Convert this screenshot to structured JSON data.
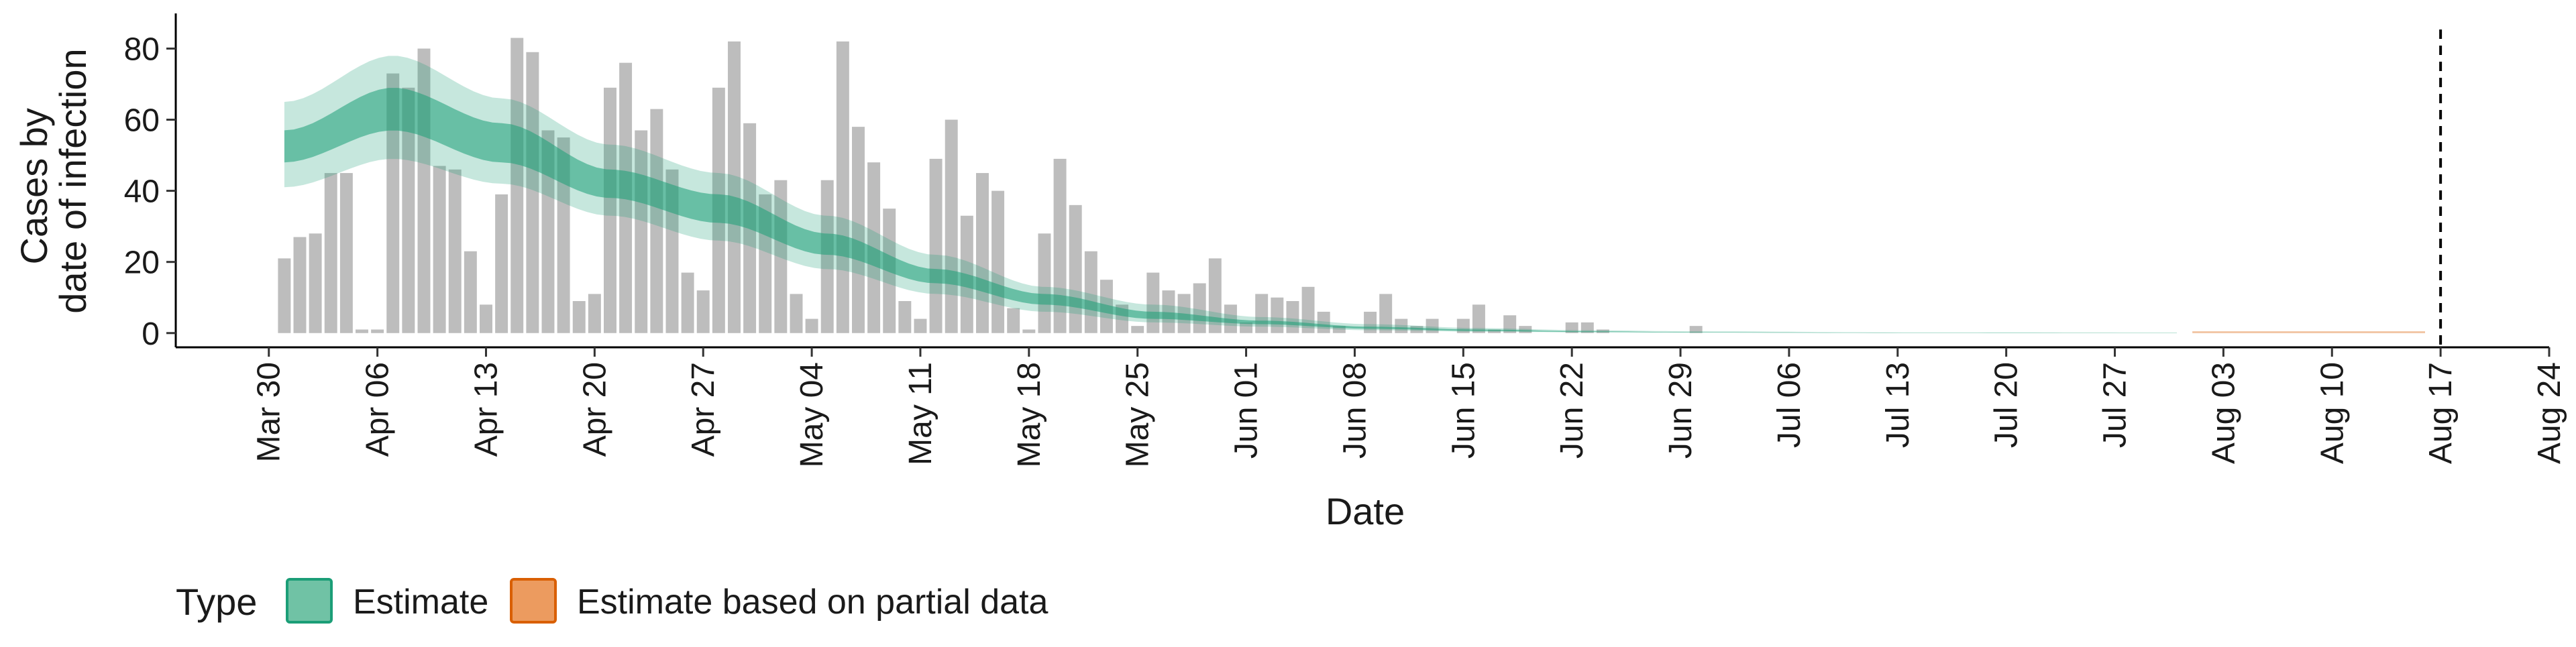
{
  "chart_data": {
    "type": "bar",
    "xlabel": "Date",
    "ylabel_lines": [
      "Cases by",
      "date of infection"
    ],
    "ylim": [
      -4,
      88
    ],
    "yticks": [
      0,
      20,
      40,
      60,
      80
    ],
    "xlim": [
      "2020-03-24",
      "2020-08-24"
    ],
    "x_tick_dates": [
      "2020-03-30",
      "2020-04-06",
      "2020-04-13",
      "2020-04-20",
      "2020-04-27",
      "2020-05-04",
      "2020-05-11",
      "2020-05-18",
      "2020-05-25",
      "2020-06-01",
      "2020-06-08",
      "2020-06-15",
      "2020-06-22",
      "2020-06-29",
      "2020-07-06",
      "2020-07-13",
      "2020-07-20",
      "2020-07-27",
      "2020-08-03",
      "2020-08-10",
      "2020-08-17",
      "2020-08-24"
    ],
    "x_tick_labels": [
      "Mar 30",
      "Apr 06",
      "Apr 13",
      "Apr 20",
      "Apr 27",
      "May 04",
      "May 11",
      "May 18",
      "May 25",
      "Jun 01",
      "Jun 08",
      "Jun 15",
      "Jun 22",
      "Jun 29",
      "Jul 06",
      "Jul 13",
      "Jul 20",
      "Jul 27",
      "Aug 03",
      "Aug 10",
      "Aug 17",
      "Aug 24"
    ],
    "bars": {
      "start_date": "2020-03-31",
      "color": "#bdbdbd",
      "values": [
        21,
        27,
        28,
        45,
        45,
        1,
        1,
        73,
        69,
        80,
        47,
        46,
        23,
        8,
        39,
        83,
        79,
        57,
        55,
        9,
        11,
        69,
        76,
        57,
        63,
        46,
        17,
        12,
        69,
        82,
        59,
        39,
        43,
        11,
        4,
        43,
        82,
        58,
        48,
        35,
        9,
        4,
        49,
        60,
        33,
        45,
        40,
        7,
        1,
        28,
        49,
        36,
        23,
        15,
        8,
        2,
        17,
        12,
        11,
        14,
        21,
        8,
        3,
        11,
        10,
        9,
        13,
        6,
        2,
        0,
        6,
        11,
        4,
        2,
        4,
        0,
        4,
        8,
        1,
        5,
        2,
        0,
        0,
        3,
        3,
        1,
        0,
        0,
        0,
        0,
        0,
        2
      ]
    },
    "estimate": {
      "name": "Estimate",
      "color": "#1b9e77",
      "knots": [
        {
          "date": "2020-03-31",
          "median": 53,
          "lo50": 48,
          "hi50": 57,
          "lo90": 41,
          "hi90": 65
        },
        {
          "date": "2020-04-07",
          "median": 63,
          "lo50": 57,
          "hi50": 69,
          "lo90": 49,
          "hi90": 78
        },
        {
          "date": "2020-04-14",
          "median": 54,
          "lo50": 48,
          "hi50": 59,
          "lo90": 42,
          "hi90": 66
        },
        {
          "date": "2020-04-21",
          "median": 42,
          "lo50": 38,
          "hi50": 46,
          "lo90": 33,
          "hi90": 53
        },
        {
          "date": "2020-04-28",
          "median": 35,
          "lo50": 31,
          "hi50": 39,
          "lo90": 26,
          "hi90": 45
        },
        {
          "date": "2020-05-05",
          "median": 25,
          "lo50": 22,
          "hi50": 28,
          "lo90": 18,
          "hi90": 33
        },
        {
          "date": "2020-05-12",
          "median": 16,
          "lo50": 14,
          "hi50": 18,
          "lo90": 11,
          "hi90": 22
        },
        {
          "date": "2020-05-19",
          "median": 9,
          "lo50": 8,
          "hi50": 11,
          "lo90": 6,
          "hi90": 13
        },
        {
          "date": "2020-05-26",
          "median": 5,
          "lo50": 4,
          "hi50": 6,
          "lo90": 3,
          "hi90": 8
        },
        {
          "date": "2020-06-02",
          "median": 3,
          "lo50": 2.5,
          "hi50": 3.5,
          "lo90": 1.8,
          "hi90": 4.5
        },
        {
          "date": "2020-06-09",
          "median": 1.5,
          "lo50": 1.2,
          "hi50": 1.8,
          "lo90": 0.8,
          "hi90": 2.5
        },
        {
          "date": "2020-06-16",
          "median": 0.8,
          "lo50": 0.6,
          "hi50": 1,
          "lo90": 0.4,
          "hi90": 1.4
        },
        {
          "date": "2020-06-23",
          "median": 0.4,
          "lo50": 0.3,
          "hi50": 0.5,
          "lo90": 0.2,
          "hi90": 0.8
        },
        {
          "date": "2020-06-30",
          "median": 0.2,
          "lo50": 0.15,
          "hi50": 0.25,
          "lo90": 0.1,
          "hi90": 0.5
        },
        {
          "date": "2020-07-14",
          "median": 0.05,
          "lo50": 0.03,
          "hi50": 0.08,
          "lo90": 0.01,
          "hi90": 0.2
        },
        {
          "date": "2020-07-31",
          "median": 0,
          "lo50": 0,
          "hi50": 0.05,
          "lo90": 0,
          "hi90": 0.15
        }
      ]
    },
    "partial_estimate": {
      "name": "Estimate based on partial data",
      "color": "#d95f02",
      "start_date": "2020-08-01",
      "end_date": "2020-08-16",
      "lo90": 0,
      "hi90": 0.15
    },
    "vline_date": "2020-08-17",
    "legend": {
      "title": "Type",
      "position": "bottom",
      "entries": [
        {
          "label": "Estimate",
          "fill": "#70c2a5",
          "border": "#1b9e77"
        },
        {
          "label": "Estimate based on partial data",
          "fill": "#ec9b5f",
          "border": "#d95f02"
        }
      ]
    },
    "grid": false
  }
}
